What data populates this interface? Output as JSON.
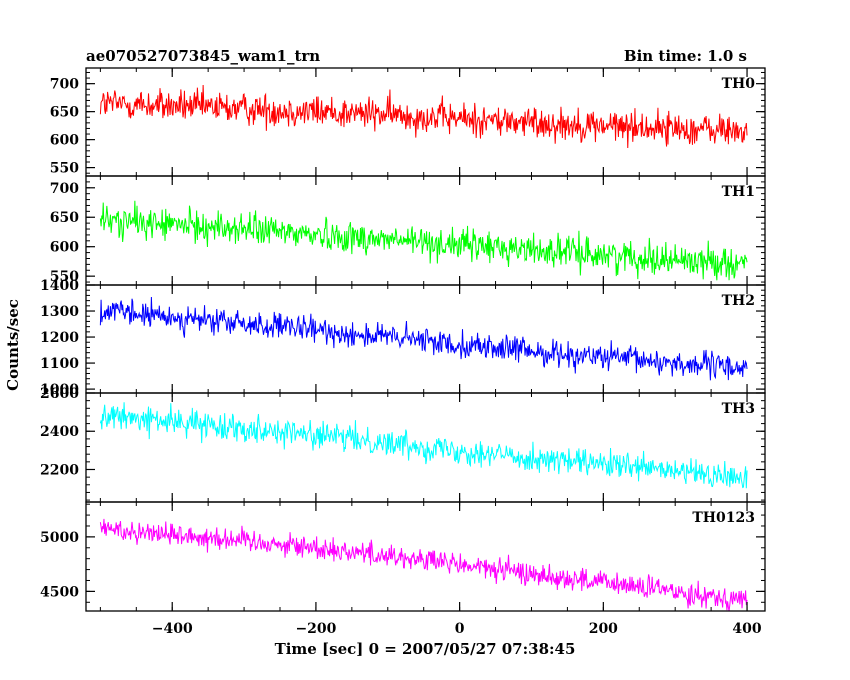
{
  "chart_data": {
    "type": "line",
    "title": "ae070527073845_wam1_trn",
    "subtitle": "Bin time: 1.0 s",
    "xlabel": "Time [sec] 0 = 2007/05/27 07:38:45",
    "ylabel": "Counts/sec",
    "xlim": [
      -520,
      425
    ],
    "x_ticks": [
      -400,
      -200,
      0,
      200,
      400
    ],
    "x_range": [
      -500,
      400
    ],
    "bin_time_s": 1.0,
    "grid": false,
    "panels": [
      {
        "name": "TH0",
        "color": "#ff0000",
        "ylim": [
          535,
          728
        ],
        "y_ticks": [
          550,
          600,
          650,
          700
        ],
        "trend": {
          "x": [
            -500,
            -300,
            -100,
            100,
            300,
            400
          ],
          "y": [
            665,
            655,
            645,
            630,
            620,
            615
          ]
        },
        "noise_amplitude": 38
      },
      {
        "name": "TH1",
        "color": "#00ff00",
        "ylim": [
          535,
          720
        ],
        "y_ticks": [
          550,
          600,
          650,
          700
        ],
        "trend": {
          "x": [
            -500,
            -300,
            -100,
            100,
            300,
            400
          ],
          "y": [
            645,
            630,
            612,
            595,
            578,
            572
          ]
        },
        "noise_amplitude": 35
      },
      {
        "name": "TH2",
        "color": "#0000ff",
        "ylim": [
          985,
          1400
        ],
        "y_ticks": [
          1000,
          1100,
          1200,
          1300,
          1400
        ],
        "trend": {
          "x": [
            -500,
            -300,
            -100,
            100,
            300,
            400
          ],
          "y": [
            1300,
            1250,
            1200,
            1145,
            1100,
            1080
          ]
        },
        "noise_amplitude": 65
      },
      {
        "name": "TH3",
        "color": "#00ffff",
        "ylim": [
          2030,
          2600
        ],
        "y_ticks": [
          2200,
          2400,
          2600
        ],
        "trend": {
          "x": [
            -500,
            -300,
            -100,
            100,
            300,
            400
          ],
          "y": [
            2480,
            2420,
            2340,
            2260,
            2190,
            2150
          ]
        },
        "noise_amplitude": 90
      },
      {
        "name": "TH0123",
        "color": "#ff00ff",
        "ylim": [
          4320,
          5320
        ],
        "y_ticks": [
          4500,
          5000
        ],
        "trend": {
          "x": [
            -500,
            -300,
            -100,
            100,
            300,
            400
          ],
          "y": [
            5080,
            4970,
            4830,
            4660,
            4500,
            4420
          ]
        },
        "noise_amplitude": 140
      }
    ]
  }
}
